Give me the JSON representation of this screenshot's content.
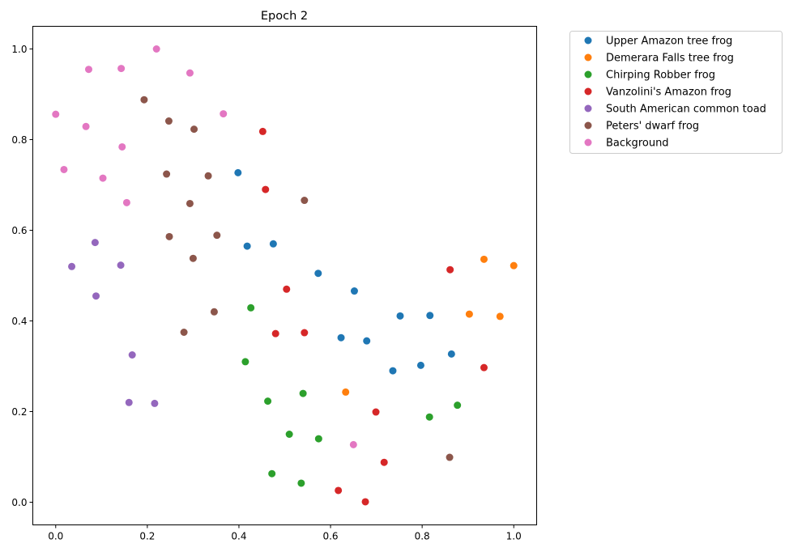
{
  "chart_data": {
    "type": "scatter",
    "title": "Epoch 2",
    "xlabel": "",
    "ylabel": "",
    "xlim": [
      -0.05,
      1.05
    ],
    "ylim": [
      -0.05,
      1.05
    ],
    "xticks": [
      "0.0",
      "0.2",
      "0.4",
      "0.6",
      "0.8",
      "1.0"
    ],
    "yticks": [
      "0.0",
      "0.2",
      "0.4",
      "0.6",
      "0.8",
      "1.0"
    ],
    "xtick_values": [
      0.0,
      0.2,
      0.4,
      0.6,
      0.8,
      1.0
    ],
    "ytick_values": [
      0.0,
      0.2,
      0.4,
      0.6,
      0.8,
      1.0
    ],
    "grid": false,
    "legend_position": "outside-upper-right",
    "series": [
      {
        "name": "Upper Amazon tree frog",
        "color": "#1f77b4",
        "points": [
          [
            0.398,
            0.727
          ],
          [
            0.418,
            0.565
          ],
          [
            0.475,
            0.57
          ],
          [
            0.573,
            0.505
          ],
          [
            0.652,
            0.466
          ],
          [
            0.752,
            0.411
          ],
          [
            0.817,
            0.412
          ],
          [
            0.623,
            0.363
          ],
          [
            0.679,
            0.356
          ],
          [
            0.864,
            0.327
          ],
          [
            0.797,
            0.302
          ],
          [
            0.736,
            0.29
          ]
        ]
      },
      {
        "name": "Demerara Falls tree frog",
        "color": "#ff7f0e",
        "points": [
          [
            0.935,
            0.536
          ],
          [
            1.0,
            0.522
          ],
          [
            0.903,
            0.415
          ],
          [
            0.97,
            0.41
          ],
          [
            0.633,
            0.243
          ]
        ]
      },
      {
        "name": "Chirping Robber frog",
        "color": "#2ca02c",
        "points": [
          [
            0.426,
            0.429
          ],
          [
            0.414,
            0.31
          ],
          [
            0.54,
            0.24
          ],
          [
            0.463,
            0.223
          ],
          [
            0.877,
            0.214
          ],
          [
            0.816,
            0.188
          ],
          [
            0.51,
            0.15
          ],
          [
            0.574,
            0.14
          ],
          [
            0.472,
            0.063
          ],
          [
            0.536,
            0.042
          ]
        ]
      },
      {
        "name": "Vanzolini's Amazon frog",
        "color": "#d62728",
        "points": [
          [
            0.452,
            0.818
          ],
          [
            0.458,
            0.69
          ],
          [
            0.861,
            0.513
          ],
          [
            0.504,
            0.47
          ],
          [
            0.48,
            0.372
          ],
          [
            0.543,
            0.374
          ],
          [
            0.935,
            0.297
          ],
          [
            0.699,
            0.199
          ],
          [
            0.717,
            0.088
          ],
          [
            0.617,
            0.026
          ],
          [
            0.676,
            0.001
          ]
        ]
      },
      {
        "name": "South American common toad",
        "color": "#9467bd",
        "points": [
          [
            0.086,
            0.573
          ],
          [
            0.035,
            0.52
          ],
          [
            0.142,
            0.523
          ],
          [
            0.088,
            0.455
          ],
          [
            0.167,
            0.325
          ],
          [
            0.16,
            0.22
          ],
          [
            0.216,
            0.218
          ]
        ]
      },
      {
        "name": "Peters' dwarf frog",
        "color": "#8c564b",
        "points": [
          [
            0.193,
            0.888
          ],
          [
            0.247,
            0.841
          ],
          [
            0.302,
            0.823
          ],
          [
            0.242,
            0.724
          ],
          [
            0.333,
            0.72
          ],
          [
            0.543,
            0.666
          ],
          [
            0.293,
            0.659
          ],
          [
            0.248,
            0.586
          ],
          [
            0.352,
            0.589
          ],
          [
            0.3,
            0.538
          ],
          [
            0.346,
            0.42
          ],
          [
            0.28,
            0.375
          ],
          [
            0.86,
            0.099
          ]
        ]
      },
      {
        "name": "Background",
        "color": "#e377c2",
        "points": [
          [
            0.22,
            1.0
          ],
          [
            0.072,
            0.955
          ],
          [
            0.143,
            0.957
          ],
          [
            0.293,
            0.947
          ],
          [
            0.0,
            0.856
          ],
          [
            0.366,
            0.857
          ],
          [
            0.066,
            0.829
          ],
          [
            0.145,
            0.784
          ],
          [
            0.018,
            0.734
          ],
          [
            0.103,
            0.715
          ],
          [
            0.155,
            0.661
          ],
          [
            0.65,
            0.127
          ]
        ]
      }
    ]
  }
}
